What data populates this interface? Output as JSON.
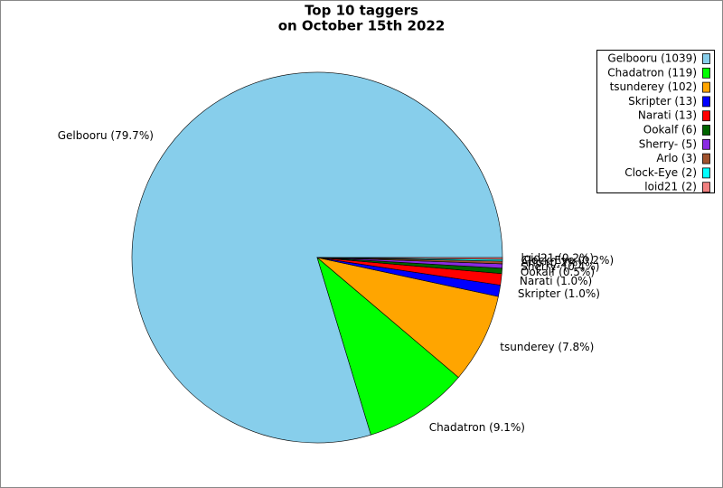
{
  "chart_data": {
    "type": "pie",
    "title": [
      "Top 10 taggers",
      "on October 15th 2022"
    ],
    "categories": [
      "Gelbooru",
      "Chadatron",
      "tsunderey",
      "Skripter",
      "Narati",
      "Ookalf",
      "Sherry-",
      "Arlo",
      "Clock-Eye",
      "loid21"
    ],
    "values": [
      1039,
      119,
      102,
      13,
      13,
      6,
      5,
      3,
      2,
      2
    ],
    "value_labels": [
      "Gelbooru (79.7%)",
      "Chadatron (9.1%)",
      "tsunderey (7.8%)",
      "Skripter (1.0%)",
      "Narati (1.0%)",
      "Ookalf (0.5%)",
      "Sherry- (0.4%)",
      "Arlo (0.2%)",
      "Clock-Eye (0.2%)",
      "loid21 (0.2%)"
    ],
    "legend_labels": [
      "Gelbooru (1039)",
      "Chadatron (119)",
      "tsunderey (102)",
      "Skripter (13)",
      "Narati (13)",
      "Ookalf (6)",
      "Sherry- (5)",
      "Arlo (3)",
      "Clock-Eye (2)",
      "loid21 (2)"
    ],
    "colors": [
      "#87ceeb",
      "#00ff00",
      "#ffa500",
      "#0000ff",
      "#ff0000",
      "#006400",
      "#8a2be2",
      "#a0522d",
      "#00ffff",
      "#f08080"
    ],
    "legend": "upper right"
  }
}
